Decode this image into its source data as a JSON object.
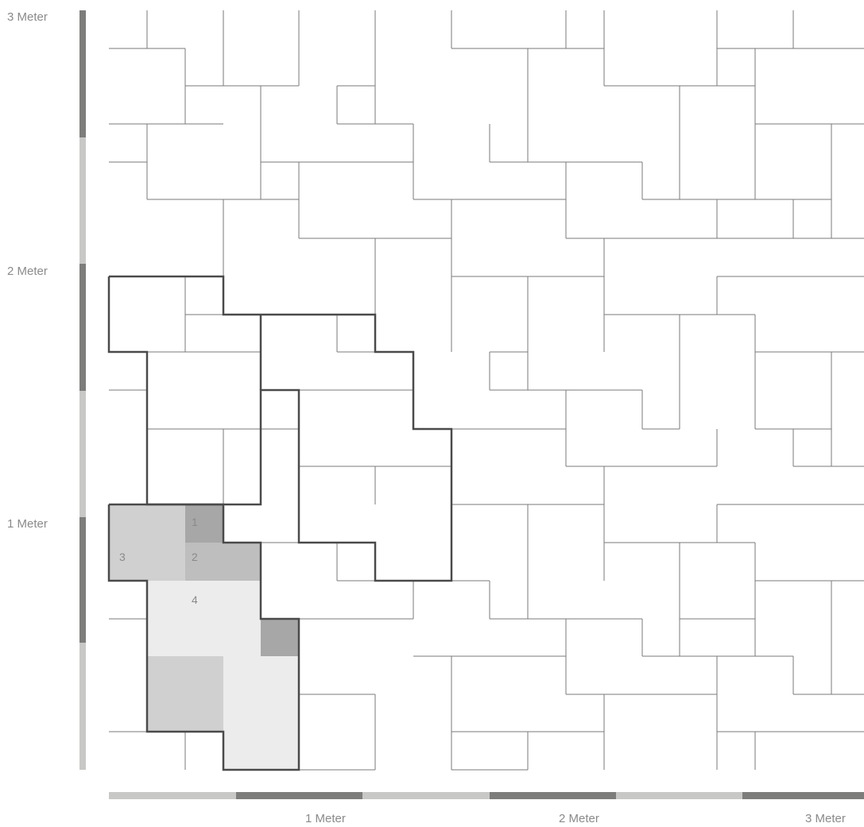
{
  "colors": {
    "background": "#ffffff",
    "stone_edge": "#7a7a7a",
    "module_outline": "#4a4a4a",
    "scale_dark": "#7d7d7c",
    "scale_light": "#c8c9c7",
    "label": "#8a8a8a",
    "fill_light": "#ececec",
    "fill_mid": "#cfd0cf",
    "fill_mid2": "#bdbebd",
    "fill_dark": "#a7a7a7"
  },
  "scale": {
    "y_labels": [
      "3 Meter",
      "2 Meter",
      "1 Meter"
    ],
    "x_labels": [
      "1 Meter",
      "2 Meter",
      "3 Meter"
    ]
  },
  "stone_numbers": [
    "1",
    "2",
    "3",
    "4"
  ]
}
